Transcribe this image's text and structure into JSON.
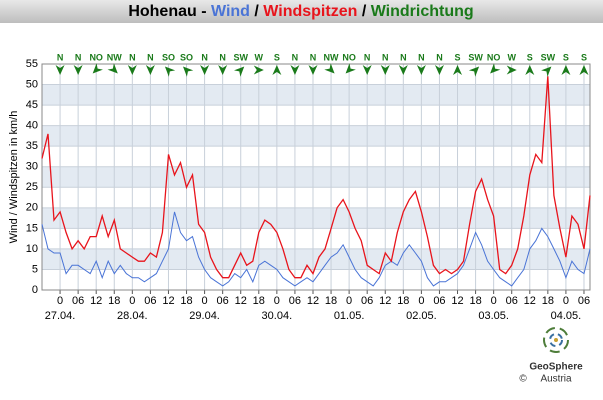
{
  "chart_data": {
    "type": "line",
    "title": "Hohenau",
    "title_separators": [
      " - ",
      " / ",
      " / "
    ],
    "y_label": "Wind / Windspitzen in km/h",
    "x": [
      -6,
      -4,
      -2,
      0,
      2,
      4,
      6,
      8,
      10,
      12,
      14,
      16,
      18,
      20,
      22,
      24,
      26,
      28,
      30,
      32,
      34,
      36,
      38,
      40,
      42,
      44,
      46,
      48,
      50,
      52,
      54,
      56,
      58,
      60,
      62,
      64,
      66,
      68,
      70,
      72,
      74,
      76,
      78,
      80,
      82,
      84,
      86,
      88,
      90,
      92,
      94,
      96,
      98,
      100,
      102,
      104,
      106,
      108,
      110,
      112,
      114,
      116,
      118,
      120,
      122,
      124,
      126,
      128,
      130,
      132,
      134,
      136,
      138,
      140,
      142,
      144,
      146,
      148,
      150,
      152,
      154,
      156,
      158,
      160,
      162,
      164,
      166,
      168,
      170,
      172,
      174,
      176
    ],
    "series": [
      {
        "name": "Wind",
        "color": "#4a74d6",
        "values": [
          16,
          10,
          9,
          9,
          4,
          6,
          6,
          5,
          4,
          7,
          3,
          7,
          4,
          6,
          4,
          3,
          3,
          2,
          3,
          4,
          7,
          10,
          19,
          14,
          12,
          13,
          8,
          5,
          3,
          2,
          1,
          2,
          4,
          3,
          5,
          2,
          6,
          7,
          6,
          5,
          3,
          2,
          1,
          2,
          3,
          2,
          4,
          6,
          8,
          9,
          11,
          8,
          5,
          3,
          2,
          1,
          3,
          6,
          7,
          6,
          9,
          11,
          9,
          7,
          3,
          1,
          2,
          2,
          3,
          4,
          6,
          10,
          14,
          11,
          7,
          5,
          3,
          2,
          1,
          3,
          5,
          10,
          12,
          15,
          13,
          10,
          7,
          3,
          7,
          5,
          4,
          10
        ]
      },
      {
        "name": "Windspitzen",
        "color": "#e8141c",
        "values": [
          32,
          38,
          17,
          19,
          14,
          10,
          12,
          10,
          13,
          13,
          18,
          13,
          17,
          10,
          9,
          8,
          7,
          7,
          9,
          8,
          14,
          33,
          28,
          31,
          25,
          28,
          16,
          14,
          8,
          5,
          3,
          3,
          6,
          9,
          6,
          7,
          14,
          17,
          16,
          14,
          10,
          5,
          3,
          3,
          6,
          4,
          8,
          10,
          15,
          20,
          22,
          19,
          15,
          12,
          6,
          5,
          4,
          9,
          7,
          14,
          19,
          22,
          24,
          19,
          13,
          6,
          4,
          5,
          4,
          5,
          7,
          16,
          24,
          27,
          22,
          18,
          5,
          4,
          6,
          10,
          18,
          28,
          33,
          31,
          52,
          23,
          15,
          8,
          18,
          16,
          10,
          23
        ]
      }
    ],
    "wind_direction": {
      "name": "Windrichtung",
      "color": "#1a7a1a",
      "x": [
        0,
        6,
        12,
        18,
        24,
        30,
        36,
        42,
        48,
        54,
        60,
        66,
        72,
        78,
        84,
        90,
        96,
        102,
        108,
        114,
        120,
        126,
        132,
        138,
        144,
        150,
        156,
        162,
        168,
        174
      ],
      "values": [
        "N",
        "N",
        "NO",
        "NW",
        "N",
        "N",
        "SO",
        "SO",
        "N",
        "N",
        "SW",
        "W",
        "S",
        "N",
        "N",
        "NW",
        "NO",
        "N",
        "N",
        "N",
        "N",
        "N",
        "S",
        "SW",
        "NO",
        "W",
        "S",
        "SW",
        "S",
        "S"
      ]
    },
    "xlim": [
      -6,
      176
    ],
    "ylim": [
      0,
      55
    ],
    "yticks": [
      0,
      5,
      10,
      15,
      20,
      25,
      30,
      35,
      40,
      45,
      50,
      55
    ],
    "xticks": [
      {
        "value": 0,
        "label": "0"
      },
      {
        "value": 6,
        "label": "06"
      },
      {
        "value": 12,
        "label": "12"
      },
      {
        "value": 18,
        "label": "18"
      },
      {
        "value": 24,
        "label": "0"
      },
      {
        "value": 30,
        "label": "06"
      },
      {
        "value": 36,
        "label": "12"
      },
      {
        "value": 42,
        "label": "18"
      },
      {
        "value": 48,
        "label": "0"
      },
      {
        "value": 54,
        "label": "06"
      },
      {
        "value": 60,
        "label": "12"
      },
      {
        "value": 66,
        "label": "18"
      },
      {
        "value": 72,
        "label": "0"
      },
      {
        "value": 78,
        "label": "06"
      },
      {
        "value": 84,
        "label": "12"
      },
      {
        "value": 90,
        "label": "18"
      },
      {
        "value": 96,
        "label": "0"
      },
      {
        "value": 102,
        "label": "06"
      },
      {
        "value": 108,
        "label": "12"
      },
      {
        "value": 114,
        "label": "18"
      },
      {
        "value": 120,
        "label": "0"
      },
      {
        "value": 126,
        "label": "06"
      },
      {
        "value": 132,
        "label": "12"
      },
      {
        "value": 138,
        "label": "18"
      },
      {
        "value": 144,
        "label": "0"
      },
      {
        "value": 150,
        "label": "06"
      },
      {
        "value": 156,
        "label": "12"
      },
      {
        "value": 162,
        "label": "18"
      },
      {
        "value": 168,
        "label": "0"
      },
      {
        "value": 174,
        "label": "06"
      }
    ],
    "xtick_dates": [
      {
        "value": 0,
        "label": "27.04."
      },
      {
        "value": 24,
        "label": "28.04."
      },
      {
        "value": 48,
        "label": "29.04."
      },
      {
        "value": 72,
        "label": "30.04."
      },
      {
        "value": 96,
        "label": "01.05."
      },
      {
        "value": 120,
        "label": "02.05."
      },
      {
        "value": 144,
        "label": "03.05."
      },
      {
        "value": 168,
        "label": "04.05."
      }
    ],
    "grid": true,
    "logo": {
      "name": "GeoSphere",
      "sub": "Austria",
      "copyright": "©"
    }
  }
}
